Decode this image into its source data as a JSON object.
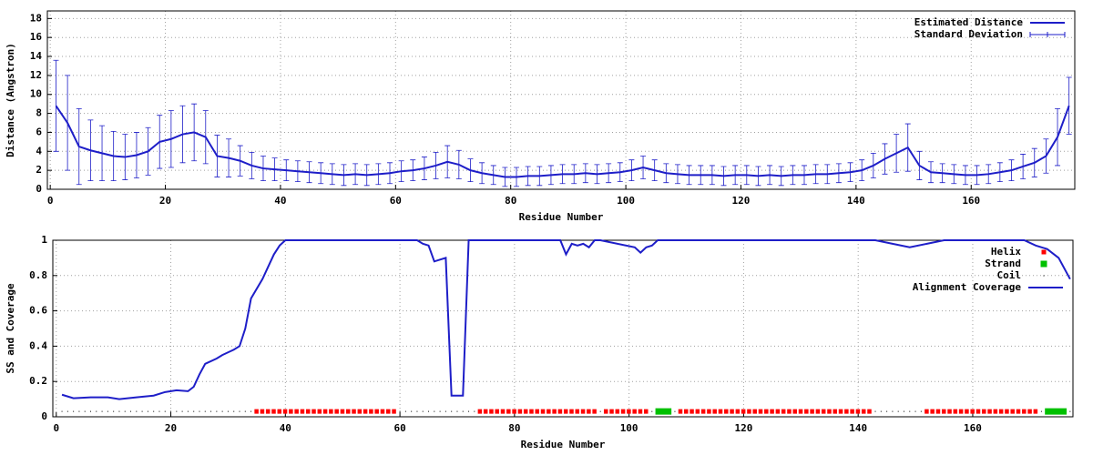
{
  "chart_data": [
    {
      "type": "line",
      "xlabel": "Residue Number",
      "ylabel": "Distance (Angstron)",
      "xlim": [
        -0.5,
        178
      ],
      "ylim": [
        0,
        18.8
      ],
      "xticks": [
        0,
        20,
        40,
        60,
        80,
        100,
        120,
        140,
        160
      ],
      "yticks": [
        0,
        2,
        4,
        6,
        8,
        10,
        12,
        14,
        16,
        18
      ],
      "grid": true,
      "legend": "upper right",
      "x": [
        1,
        3,
        5,
        7,
        9,
        11,
        13,
        15,
        17,
        19,
        21,
        23,
        25,
        27,
        29,
        31,
        33,
        35,
        37,
        39,
        41,
        43,
        45,
        47,
        49,
        51,
        53,
        55,
        57,
        59,
        61,
        63,
        65,
        67,
        69,
        71,
        73,
        75,
        77,
        79,
        81,
        83,
        85,
        87,
        89,
        91,
        93,
        95,
        97,
        99,
        101,
        103,
        105,
        107,
        109,
        111,
        113,
        115,
        117,
        119,
        121,
        123,
        125,
        127,
        129,
        131,
        133,
        135,
        137,
        139,
        141,
        143,
        145,
        147,
        149,
        151,
        153,
        155,
        157,
        159,
        161,
        163,
        165,
        167,
        169,
        171,
        173,
        175,
        177
      ],
      "series": [
        {
          "name": "Estimated Distance",
          "error_name": "Standard Deviation",
          "color": "#1e1ec8",
          "values": [
            8.8,
            7.0,
            4.5,
            4.1,
            3.8,
            3.5,
            3.4,
            3.6,
            4.0,
            5.0,
            5.3,
            5.8,
            6.0,
            5.5,
            3.5,
            3.3,
            3.0,
            2.5,
            2.2,
            2.1,
            2.0,
            1.9,
            1.8,
            1.7,
            1.6,
            1.5,
            1.6,
            1.5,
            1.6,
            1.7,
            1.9,
            2.0,
            2.2,
            2.5,
            2.9,
            2.6,
            2.0,
            1.7,
            1.5,
            1.3,
            1.3,
            1.4,
            1.4,
            1.5,
            1.6,
            1.6,
            1.7,
            1.6,
            1.7,
            1.8,
            2.0,
            2.3,
            2.0,
            1.7,
            1.6,
            1.5,
            1.5,
            1.5,
            1.4,
            1.5,
            1.5,
            1.4,
            1.5,
            1.4,
            1.5,
            1.5,
            1.6,
            1.6,
            1.7,
            1.8,
            2.0,
            2.5,
            3.2,
            3.8,
            4.4,
            2.5,
            1.8,
            1.7,
            1.6,
            1.5,
            1.5,
            1.6,
            1.8,
            2.0,
            2.4,
            2.8,
            3.5,
            5.5,
            8.8
          ],
          "errors": [
            4.8,
            5.0,
            4.0,
            3.2,
            2.9,
            2.6,
            2.4,
            2.4,
            2.5,
            2.8,
            3.0,
            3.0,
            3.0,
            2.8,
            2.2,
            2.0,
            1.6,
            1.4,
            1.3,
            1.2,
            1.1,
            1.1,
            1.1,
            1.1,
            1.1,
            1.1,
            1.1,
            1.1,
            1.1,
            1.1,
            1.1,
            1.1,
            1.2,
            1.4,
            1.7,
            1.5,
            1.2,
            1.1,
            1.0,
            1.0,
            1.0,
            1.0,
            1.0,
            1.0,
            1.0,
            1.0,
            1.0,
            1.0,
            1.0,
            1.0,
            1.1,
            1.2,
            1.1,
            1.0,
            1.0,
            1.0,
            1.0,
            1.0,
            1.0,
            1.0,
            1.0,
            1.0,
            1.0,
            1.0,
            1.0,
            1.0,
            1.0,
            1.0,
            1.0,
            1.0,
            1.1,
            1.3,
            1.6,
            2.0,
            2.5,
            1.5,
            1.1,
            1.0,
            1.0,
            1.0,
            1.0,
            1.0,
            1.0,
            1.1,
            1.3,
            1.5,
            1.8,
            3.0,
            3.0
          ]
        }
      ]
    },
    {
      "type": "line",
      "xlabel": "Residue Number",
      "ylabel": "SS and Coverage",
      "xlim": [
        -0.6,
        177.5
      ],
      "ylim": [
        0,
        1
      ],
      "xticks": [
        0,
        20,
        40,
        60,
        80,
        100,
        120,
        140,
        160
      ],
      "yticks": [
        0,
        0.2,
        0.4,
        0.6,
        0.8,
        1
      ],
      "grid": true,
      "legend": "upper right",
      "ss_series": [
        {
          "name": "Helix",
          "color": "#ff0000",
          "level": 0.03,
          "ranges": [
            [
              35,
              59
            ],
            [
              74,
              94
            ],
            [
              96,
              103
            ],
            [
              109,
              142
            ],
            [
              152,
              171
            ]
          ]
        },
        {
          "name": "Strand",
          "color": "#00c000",
          "level": 0.03,
          "ranges": [
            [
              105,
              107
            ],
            [
              173,
              176
            ]
          ]
        },
        {
          "name": "Coil",
          "color": "#000000",
          "level": 0.03,
          "ranges": [
            [
              1,
              34
            ],
            [
              60,
              73
            ],
            [
              95,
              95
            ],
            [
              104,
              104
            ],
            [
              108,
              108
            ],
            [
              143,
              151
            ],
            [
              172,
              172
            ],
            [
              177,
              177
            ]
          ]
        }
      ],
      "series": [
        {
          "name": "Alignment Coverage",
          "color": "#1e1ec8",
          "x": [
            1,
            3,
            6,
            9,
            11,
            14,
            17,
            19,
            21,
            23,
            24,
            25,
            26,
            28,
            29,
            31,
            32,
            33,
            34,
            36,
            37,
            38,
            39,
            40,
            63,
            64,
            65,
            66,
            67,
            68,
            69,
            71,
            72,
            88,
            89,
            90,
            91,
            92,
            93,
            94,
            95,
            101,
            102,
            103,
            104,
            105,
            106,
            143,
            146,
            149,
            152,
            155,
            169,
            171,
            173,
            175,
            177
          ],
          "values": [
            0.125,
            0.105,
            0.11,
            0.11,
            0.1,
            0.11,
            0.12,
            0.14,
            0.15,
            0.145,
            0.17,
            0.24,
            0.3,
            0.33,
            0.35,
            0.38,
            0.4,
            0.5,
            0.67,
            0.78,
            0.85,
            0.92,
            0.97,
            1,
            1,
            0.98,
            0.97,
            0.88,
            0.89,
            0.9,
            0.12,
            0.12,
            1,
            1,
            0.92,
            0.98,
            0.97,
            0.98,
            0.96,
            1,
            1,
            0.96,
            0.93,
            0.96,
            0.97,
            1,
            1,
            1,
            0.98,
            0.96,
            0.98,
            1,
            1,
            0.97,
            0.95,
            0.9,
            0.78
          ]
        }
      ]
    }
  ]
}
